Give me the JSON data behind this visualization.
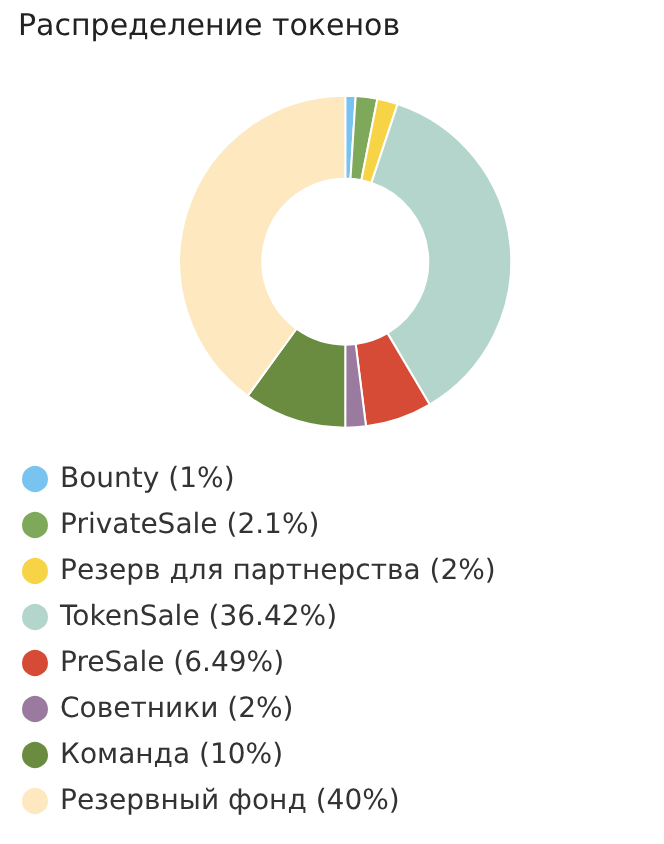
{
  "chart_data": {
    "type": "donut",
    "title": "Распределение токенов",
    "categories": [
      "Bounty (1%)",
      "PrivateSale (2.1%)",
      "Резерв для партнерства (2%)",
      "TokenSale (36.42%)",
      "PreSale (6.49%)",
      "Советники (2%)",
      "Команда (10%)",
      "Резервный фонд (40%)"
    ],
    "values": [
      1,
      2.1,
      2,
      36.42,
      6.49,
      2,
      10,
      40
    ],
    "colors": [
      "#79c3f0",
      "#7fa95a",
      "#f7d446",
      "#b4d5cc",
      "#d64b35",
      "#9a7a9e",
      "#6a8c40",
      "#fde8bf"
    ],
    "legend": "bottom left"
  }
}
